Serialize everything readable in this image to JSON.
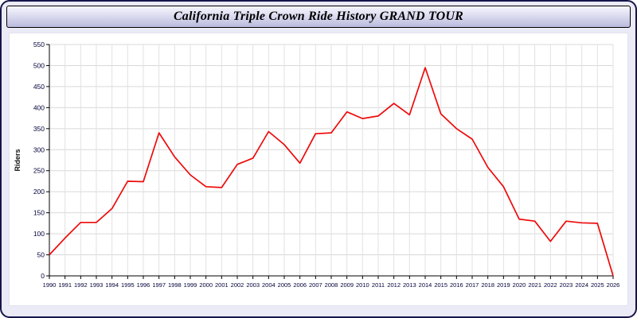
{
  "window": {
    "title": "California Triple Crown Ride History GRAND TOUR"
  },
  "chart_data": {
    "type": "line",
    "title": "California Triple Crown Ride History GRAND TOUR",
    "xlabel": "",
    "ylabel": "Riders",
    "ylim": [
      0,
      550
    ],
    "ytick_step": 50,
    "grid": true,
    "legend": "none",
    "line_color": "#ee0a0a",
    "x": [
      1990,
      1991,
      1992,
      1993,
      1994,
      1995,
      1996,
      1997,
      1998,
      1999,
      2000,
      2001,
      2002,
      2003,
      2004,
      2005,
      2006,
      2007,
      2008,
      2009,
      2010,
      2011,
      2012,
      2013,
      2014,
      2015,
      2016,
      2017,
      2018,
      2019,
      2020,
      2021,
      2022,
      2023,
      2024,
      2025,
      2026
    ],
    "series": [
      {
        "name": "Riders",
        "values": [
          50,
          90,
          127,
          127,
          160,
          225,
          224,
          340,
          283,
          240,
          212,
          210,
          265,
          280,
          343,
          312,
          268,
          338,
          340,
          390,
          374,
          380,
          410,
          383,
          495,
          385,
          350,
          325,
          258,
          212,
          135,
          130,
          82,
          130,
          126,
          125,
          0
        ]
      }
    ]
  }
}
